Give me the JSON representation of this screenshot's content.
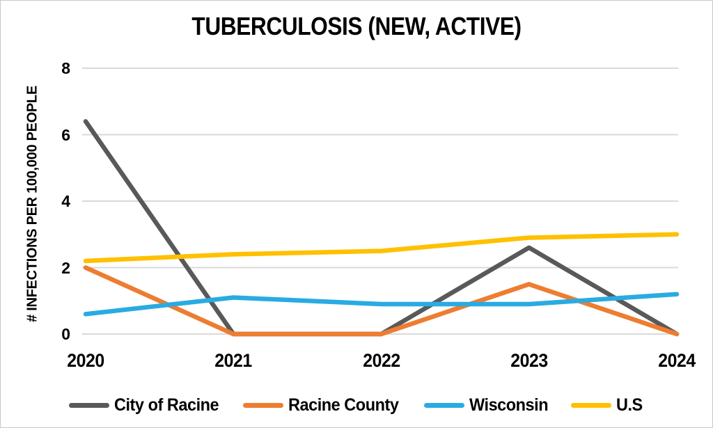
{
  "chart_data": {
    "type": "line",
    "title": "TUBERCULOSIS (NEW, ACTIVE)",
    "ylabel": "# INFECTIONS PER 100,000 PEOPLE",
    "xlabel": "",
    "categories": [
      "2020",
      "2021",
      "2022",
      "2023",
      "2024"
    ],
    "series": [
      {
        "name": "City of Racine",
        "color": "#595959",
        "values": [
          6.4,
          0,
          0,
          2.6,
          0
        ]
      },
      {
        "name": "Racine County",
        "color": "#ED7D31",
        "values": [
          2.0,
          0,
          0,
          1.5,
          0
        ]
      },
      {
        "name": "Wisconsin",
        "color": "#29ABE2",
        "values": [
          0.6,
          1.1,
          0.9,
          0.9,
          1.2
        ]
      },
      {
        "name": "U.S",
        "color": "#FFC000",
        "values": [
          2.2,
          2.4,
          2.5,
          2.9,
          3.0
        ]
      }
    ],
    "ylim": [
      0,
      8
    ],
    "yticks": [
      0,
      2,
      4,
      6,
      8
    ],
    "grid": true,
    "gridline_color": "#D9D9D9",
    "legend_position": "bottom"
  }
}
